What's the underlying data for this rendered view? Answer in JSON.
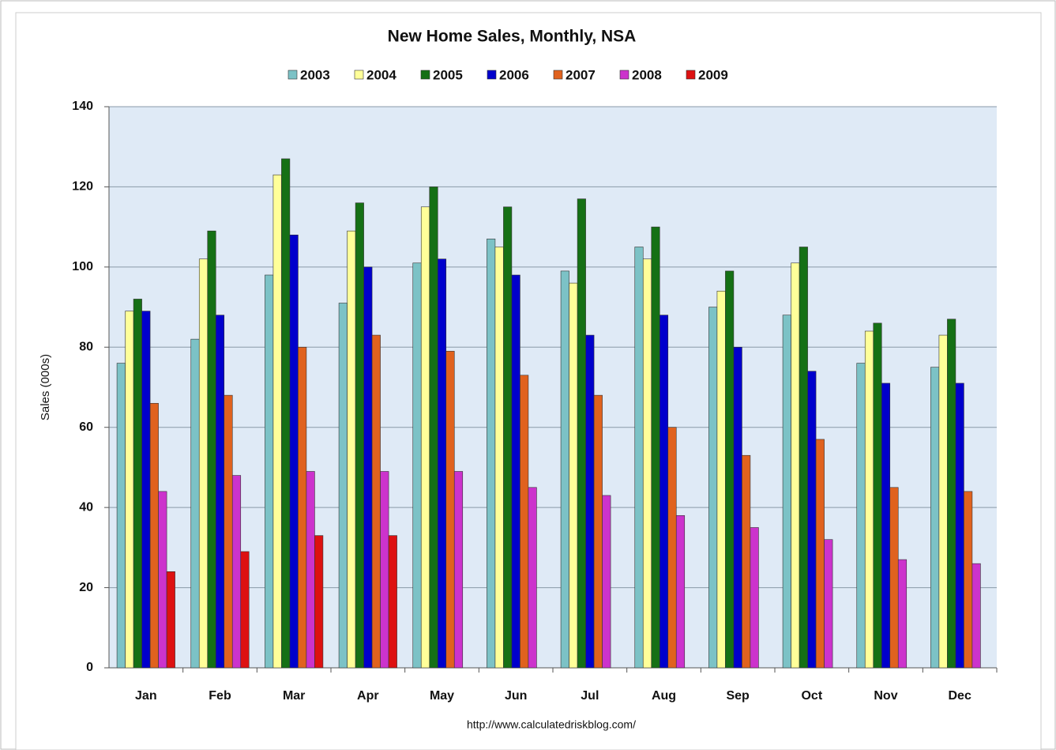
{
  "chart_data": {
    "type": "bar",
    "title": "New Home Sales, Monthly, NSA",
    "y_label": "Sales (000s)",
    "source": "http://www.calculatedriskblog.com/",
    "categories": [
      "Jan",
      "Feb",
      "Mar",
      "Apr",
      "May",
      "Jun",
      "Jul",
      "Aug",
      "Sep",
      "Oct",
      "Nov",
      "Dec"
    ],
    "series": [
      {
        "name": "2003",
        "color": "#7cc2c6",
        "values": [
          76,
          82,
          98,
          91,
          101,
          107,
          99,
          105,
          90,
          88,
          76,
          75
        ]
      },
      {
        "name": "2004",
        "color": "#ffff99",
        "values": [
          89,
          102,
          123,
          109,
          115,
          105,
          96,
          102,
          94,
          101,
          84,
          83
        ]
      },
      {
        "name": "2005",
        "color": "#157015",
        "values": [
          92,
          109,
          127,
          116,
          120,
          115,
          117,
          110,
          99,
          105,
          86,
          87
        ]
      },
      {
        "name": "2006",
        "color": "#0000cc",
        "values": [
          89,
          88,
          108,
          100,
          102,
          98,
          83,
          88,
          80,
          74,
          71,
          71
        ]
      },
      {
        "name": "2007",
        "color": "#e0621e",
        "values": [
          66,
          68,
          80,
          83,
          79,
          73,
          68,
          60,
          53,
          57,
          45,
          44
        ]
      },
      {
        "name": "2008",
        "color": "#cc33cc",
        "values": [
          44,
          48,
          49,
          49,
          49,
          45,
          43,
          38,
          35,
          32,
          27,
          26
        ]
      },
      {
        "name": "2009",
        "color": "#dd1111",
        "values": [
          24,
          29,
          33,
          33,
          null,
          null,
          null,
          null,
          null,
          null,
          null,
          null
        ]
      }
    ],
    "ylim": [
      0,
      140
    ],
    "yticks": [
      0,
      20,
      40,
      60,
      80,
      100,
      120,
      140
    ],
    "grid": true,
    "legend": "top"
  }
}
